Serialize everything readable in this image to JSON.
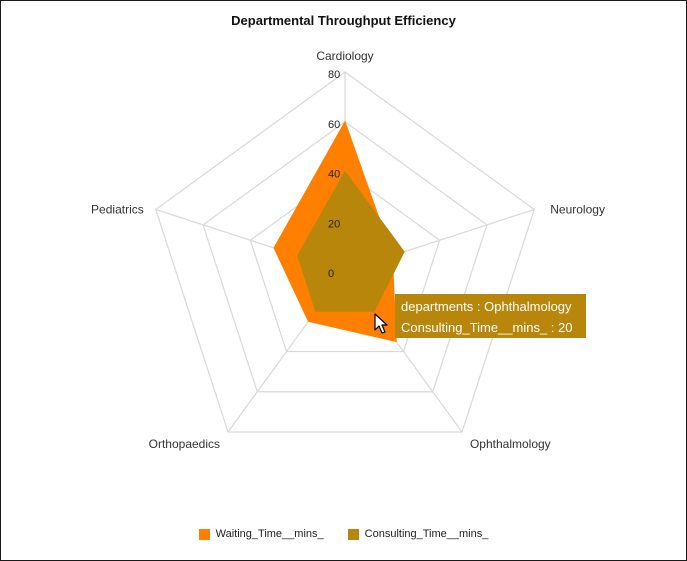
{
  "chart_data": {
    "type": "radar",
    "title": "Departmental Throughput Efficiency",
    "categories": [
      "Cardiology",
      "Neurology",
      "Ophthalmology",
      "Orthopaedics",
      "Pediatrics"
    ],
    "range": [
      0,
      80
    ],
    "ticks": [
      "0",
      "20",
      "40",
      "60",
      "80"
    ],
    "grid": true,
    "legend_position": "bottom",
    "series": [
      {
        "name": "Waiting_Time__mins_",
        "color": "#ff7f00",
        "values": [
          60,
          20,
          35,
          25,
          30
        ]
      },
      {
        "name": "Consulting_Time__mins_",
        "color": "#b8860b",
        "values": [
          40,
          25,
          20,
          20,
          20
        ]
      }
    ]
  },
  "tooltip": {
    "line1": "departments : Ophthalmology",
    "line2": "Consulting_Time__mins_ : 20"
  }
}
